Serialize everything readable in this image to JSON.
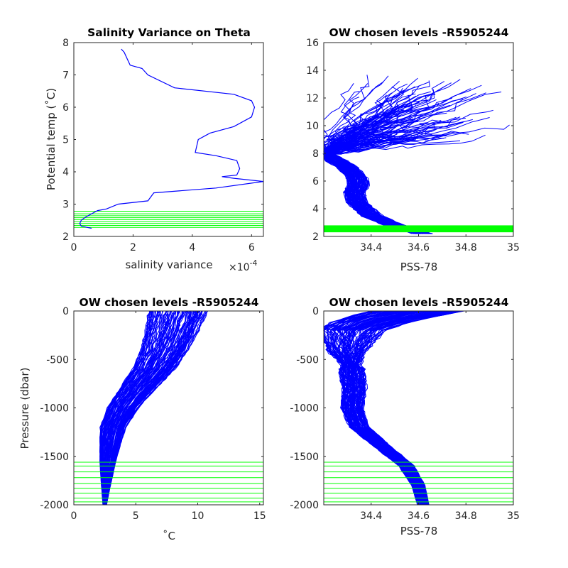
{
  "colors": {
    "profile": "#0000ff",
    "chosen_levels": "#00ff00",
    "axes": "#262626"
  },
  "chart_data": [
    {
      "type": "line",
      "title": "Salinity Variance on Theta",
      "xlabel": "salinity variance",
      "x_exponent": "×10",
      "x_exponent_power": "-4",
      "ylabel": "Potential temp (˚C)",
      "xlim": [
        0,
        6.4
      ],
      "ylim": [
        2,
        8
      ],
      "xticks": [
        0,
        2,
        4,
        6
      ],
      "yticks": [
        2,
        3,
        4,
        5,
        6,
        7,
        8
      ],
      "series": [
        {
          "x": [
            1.6,
            1.7,
            1.8,
            1.9,
            2.3,
            2.5,
            3.4,
            5.4,
            6.0,
            6.1,
            6.0,
            5.4,
            4.6,
            4.5,
            4.2,
            4.1,
            4.8,
            5.5,
            5.6,
            5.5,
            5.0,
            5.4,
            6.4,
            4.8,
            2.7,
            2.5,
            1.5,
            1.1,
            0.8,
            0.6,
            0.4,
            0.25,
            0.2,
            0.25,
            0.6
          ],
          "y": [
            7.8,
            7.7,
            7.5,
            7.3,
            7.2,
            7.0,
            6.6,
            6.4,
            6.2,
            6.0,
            5.7,
            5.4,
            5.2,
            5.15,
            5.0,
            4.6,
            4.5,
            4.35,
            4.1,
            3.9,
            3.85,
            3.8,
            3.7,
            3.5,
            3.35,
            3.1,
            3.0,
            2.85,
            2.8,
            2.7,
            2.6,
            2.5,
            2.4,
            2.32,
            2.25
          ]
        }
      ],
      "chosen_levels": [
        2.28,
        2.34,
        2.4,
        2.46,
        2.52,
        2.58,
        2.64,
        2.7,
        2.78
      ]
    },
    {
      "type": "line",
      "title": "OW chosen levels -R5905244",
      "xlabel": "PSS-78",
      "ylabel": "",
      "xlim": [
        34.2,
        35.0
      ],
      "ylim": [
        2,
        16
      ],
      "xticks": [
        34.4,
        34.6,
        34.8,
        35
      ],
      "xticklabels": [
        "34.4",
        "34.6",
        "34.8",
        "35"
      ],
      "yticks": [
        2,
        4,
        6,
        8,
        10,
        12,
        14,
        16
      ],
      "profile_curve": {
        "x": [
          34.62,
          34.5,
          34.4,
          34.34,
          34.33,
          34.35,
          34.34,
          34.3,
          34.24,
          34.2
        ],
        "y": [
          2.2,
          2.8,
          3.5,
          4.5,
          5.2,
          5.8,
          6.3,
          7.0,
          7.6,
          8.0
        ]
      },
      "chosen_band": [
        2.3,
        2.8
      ]
    },
    {
      "type": "line",
      "title": "OW chosen levels -R5905244",
      "xlabel": "˚C",
      "ylabel": "Pressure (dbar)",
      "xlim": [
        0,
        15.3
      ],
      "ylim": [
        -2000,
        0
      ],
      "xticks": [
        0,
        5,
        10,
        15
      ],
      "yticks": [
        -2000,
        -1500,
        -1000,
        -500,
        0
      ],
      "mean_profile": {
        "x": [
          2.5,
          2.6,
          2.8,
          3.2,
          4.0,
          5.2,
          6.5,
          7.4,
          8.0,
          8.5
        ],
        "y": [
          -2000,
          -1800,
          -1500,
          -1200,
          -1000,
          -800,
          -600,
          -400,
          -200,
          0
        ]
      },
      "chosen_levels": [
        -1560,
        -1600,
        -1660,
        -1720,
        -1780,
        -1830,
        -1880,
        -1930,
        -1970,
        -2000
      ]
    },
    {
      "type": "line",
      "title": "OW chosen levels -R5905244",
      "xlabel": "PSS-78",
      "ylabel": "",
      "xlim": [
        34.2,
        35.0
      ],
      "ylim": [
        -2000,
        0
      ],
      "xticks": [
        34.4,
        34.6,
        34.8,
        35
      ],
      "xticklabels": [
        "34.4",
        "34.6",
        "34.8",
        "35"
      ],
      "yticks": [
        -2000,
        -1500,
        -1000,
        -500,
        0
      ],
      "mean_profile": {
        "x": [
          34.62,
          34.6,
          34.55,
          34.45,
          34.35,
          34.32,
          34.33,
          34.32,
          34.3,
          34.32,
          34.42,
          34.6
        ],
        "y": [
          -2000,
          -1800,
          -1600,
          -1400,
          -1200,
          -1000,
          -800,
          -600,
          -400,
          -200,
          -100,
          0
        ]
      },
      "chosen_levels": [
        -1560,
        -1600,
        -1660,
        -1720,
        -1780,
        -1830,
        -1880,
        -1930,
        -1970,
        -2000
      ]
    }
  ]
}
